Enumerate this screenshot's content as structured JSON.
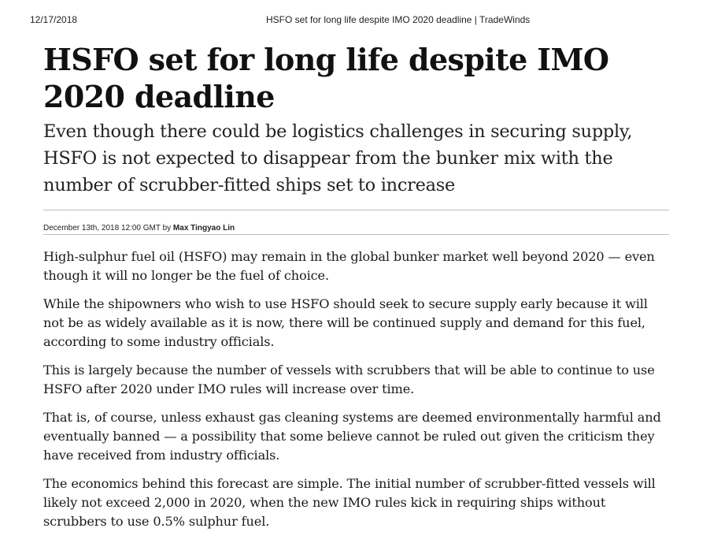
{
  "print_header": {
    "date": "12/17/2018",
    "title": "HSFO set for long life despite IMO 2020 deadline | TradeWinds"
  },
  "article": {
    "headline": "HSFO set for long life despite IMO 2020 deadline",
    "standfirst": "Even though there could be logistics challenges in securing supply, HSFO is not expected to disappear from the bunker mix with the number of scrubber-fitted ships set to increase",
    "byline": {
      "date": "December 13th, 2018 12:00 GMT",
      "by": "by",
      "author": "Max Tingyao Lin"
    },
    "paragraphs": [
      "High-sulphur fuel oil (HSFO) may remain in the global bunker market well beyond 2020 — even though it will no longer be the fuel of choice.",
      "While the shipowners who wish to use HSFO should seek to secure supply early because it will not be as widely available as it is now, there will be continued supply and demand for this fuel, according to some industry officials.",
      "This is largely because the number of vessels with scrubbers that will be able to continue to use HSFO after 2020 under IMO rules will increase over time.",
      "That is, of course, unless exhaust gas cleaning systems are deemed environmentally harmful and eventually banned — a possibility that some believe cannot be ruled out given the criticism they have received from industry officials.",
      "The economics behind this forecast are simple. The initial number of scrubber-fitted vessels will likely not exceed 2,000 in 2020, when the new IMO rules kick in requiring ships without scrubbers to use 0.5% sulphur fuel."
    ]
  }
}
